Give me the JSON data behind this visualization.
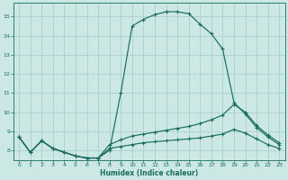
{
  "xlabel": "Humidex (Indice chaleur)",
  "bg_color": "#cce8e5",
  "grid_color": "#aad0cc",
  "line_color": "#1a6b60",
  "xlim": [
    -0.5,
    23.5
  ],
  "ylim": [
    7.5,
    15.7
  ],
  "xticks": [
    0,
    1,
    2,
    3,
    4,
    5,
    6,
    7,
    8,
    9,
    10,
    11,
    12,
    13,
    14,
    15,
    16,
    17,
    18,
    19,
    20,
    21,
    22,
    23
  ],
  "yticks": [
    8,
    9,
    10,
    11,
    12,
    13,
    14,
    15
  ],
  "curve1_x": [
    0,
    1,
    2,
    3,
    4,
    5,
    6,
    7,
    8,
    9,
    10,
    11,
    12,
    13,
    14,
    15,
    16,
    17,
    18,
    19,
    20,
    21,
    22,
    23
  ],
  "curve1_y": [
    8.7,
    7.9,
    8.5,
    8.1,
    7.9,
    7.7,
    7.6,
    7.6,
    8.0,
    11.0,
    14.5,
    14.85,
    15.1,
    15.25,
    15.25,
    15.15,
    14.6,
    14.1,
    13.3,
    10.5,
    9.9,
    9.2,
    8.7,
    8.3
  ],
  "curve2_x": [
    0,
    1,
    2,
    3,
    4,
    5,
    6,
    7,
    8,
    9,
    10,
    11,
    12,
    13,
    14,
    15,
    16,
    17,
    18,
    19,
    20,
    21,
    22,
    23
  ],
  "curve2_y": [
    8.7,
    7.9,
    8.5,
    8.1,
    7.9,
    7.7,
    7.6,
    7.6,
    8.3,
    8.55,
    8.75,
    8.85,
    8.95,
    9.05,
    9.15,
    9.25,
    9.4,
    9.6,
    9.85,
    10.4,
    10.0,
    9.3,
    8.8,
    8.4
  ],
  "curve3_x": [
    0,
    1,
    2,
    3,
    4,
    5,
    6,
    7,
    8,
    9,
    10,
    11,
    12,
    13,
    14,
    15,
    16,
    17,
    18,
    19,
    20,
    21,
    22,
    23
  ],
  "curve3_y": [
    8.7,
    7.9,
    8.5,
    8.1,
    7.9,
    7.7,
    7.6,
    7.6,
    8.1,
    8.2,
    8.3,
    8.4,
    8.45,
    8.5,
    8.55,
    8.6,
    8.65,
    8.75,
    8.85,
    9.1,
    8.9,
    8.6,
    8.3,
    8.1
  ]
}
